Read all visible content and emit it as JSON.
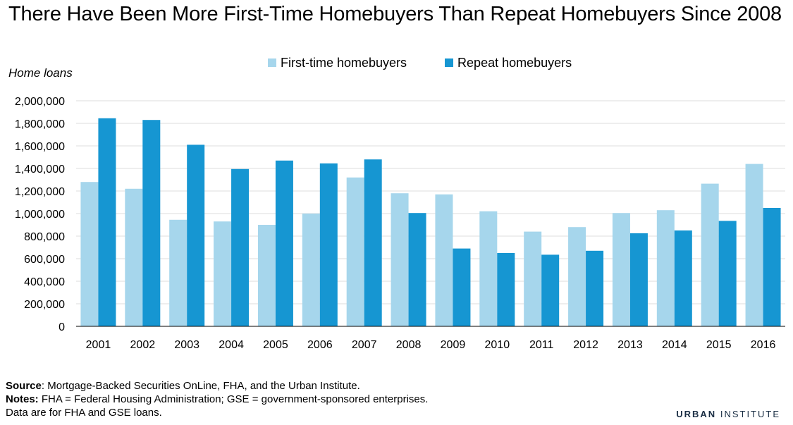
{
  "title": "There Have Been More First-Time Homebuyers Than Repeat Homebuyers Since 2008",
  "legend": {
    "first": "First-time homebuyers",
    "repeat": "Repeat homebuyers"
  },
  "colors": {
    "first": "#a6d6ec",
    "repeat": "#1696d2",
    "grid": "#dedede",
    "axis": "#000000"
  },
  "chart_data": {
    "type": "bar",
    "ylabel": "Home loans",
    "xlabel": "",
    "ylim": [
      0,
      2000000
    ],
    "yticks": [
      0,
      200000,
      400000,
      600000,
      800000,
      1000000,
      1200000,
      1400000,
      1600000,
      1800000,
      2000000
    ],
    "ytick_labels": [
      "0",
      "200,000",
      "400,000",
      "600,000",
      "800,000",
      "1,000,000",
      "1,200,000",
      "1,400,000",
      "1,600,000",
      "1,800,000",
      "2,000,000"
    ],
    "grid": true,
    "legend_position": "top",
    "categories": [
      "2001",
      "2002",
      "2003",
      "2004",
      "2005",
      "2006",
      "2007",
      "2008",
      "2009",
      "2010",
      "2011",
      "2012",
      "2013",
      "2014",
      "2015",
      "2016"
    ],
    "series": [
      {
        "name": "First-time homebuyers",
        "values": [
          1280000,
          1220000,
          945000,
          930000,
          900000,
          1000000,
          1320000,
          1180000,
          1170000,
          1020000,
          840000,
          880000,
          1005000,
          1030000,
          1265000,
          1440000
        ]
      },
      {
        "name": "Repeat homebuyers",
        "values": [
          1845000,
          1830000,
          1610000,
          1395000,
          1470000,
          1445000,
          1480000,
          1005000,
          690000,
          650000,
          635000,
          670000,
          825000,
          850000,
          935000,
          1050000
        ]
      }
    ]
  },
  "footer": {
    "source_label": "Source",
    "source_text": ": Mortgage-Backed Securities OnLine, FHA, and the Urban Institute.",
    "notes_label": "Notes:",
    "notes_text": " FHA = Federal Housing Administration; GSE = government-sponsored enterprises.",
    "data_note": "Data are for FHA and GSE loans."
  },
  "brand": {
    "part1": "URBAN",
    "part2": "INSTITUTE"
  }
}
